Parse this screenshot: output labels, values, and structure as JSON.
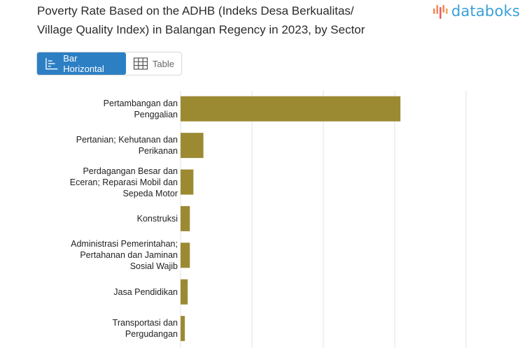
{
  "title_lines": [
    "Poverty Rate Based on the ADHB (Indeks Desa Berkualitas/",
    "Village Quality Index) in Balangan Regency in 2023, by Sector"
  ],
  "logo": {
    "text": "databoks",
    "icon": "databoks-bars-icon",
    "color": "#3aa0d8"
  },
  "view_toggle": {
    "options": [
      {
        "label": "Bar Horizontal",
        "icon": "bar-horizontal-icon",
        "active": true
      },
      {
        "label": "Table",
        "icon": "table-grid-icon",
        "active": false
      }
    ]
  },
  "colors": {
    "bar": "#9c8a33",
    "grid": "#e3e3e3",
    "accent": "#2d7fc4"
  },
  "chart_data": {
    "type": "bar",
    "orientation": "horizontal",
    "categories": [
      [
        "Pertambangan dan",
        "Penggalian"
      ],
      [
        "Pertanian; Kehutanan dan",
        "Perikanan"
      ],
      [
        "Perdagangan Besar dan",
        "Eceran; Reparasi Mobil dan",
        "Sepeda Motor"
      ],
      [
        "Konstruksi"
      ],
      [
        "Administrasi Pemerintahan;",
        "Pertahanan dan Jaminan",
        "Sosial Wajib"
      ],
      [
        "Jasa Pendidikan"
      ],
      [
        "Transportasi dan",
        "Pergudangan"
      ]
    ],
    "values": [
      3.08,
      0.32,
      0.18,
      0.13,
      0.13,
      0.1,
      0.06
    ],
    "xlim": [
      0,
      4
    ],
    "grid": true,
    "legend": "none"
  }
}
